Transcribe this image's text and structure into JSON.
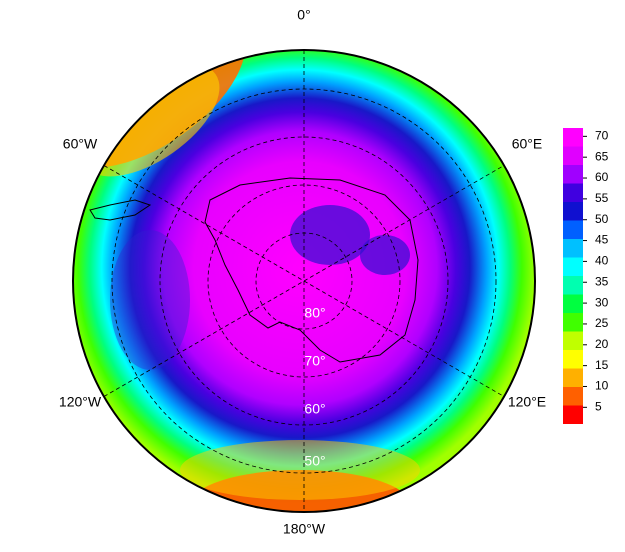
{
  "map": {
    "longitude_labels": [
      "0°",
      "60°E",
      "120°E",
      "180°W",
      "120°W",
      "60°W"
    ],
    "latitude_labels": [
      "80°",
      "70°",
      "60°",
      "50°"
    ]
  },
  "colorbar": {
    "lim": [
      1,
      72
    ],
    "ticks": [
      5,
      10,
      15,
      20,
      25,
      30,
      35,
      40,
      45,
      50,
      55,
      60,
      65,
      70
    ],
    "colors": [
      "#ff0000",
      "#ff6000",
      "#ffb000",
      "#ffff00",
      "#c0ff00",
      "#40ff00",
      "#00ff40",
      "#00ffb0",
      "#00ffff",
      "#00c0ff",
      "#0060ff",
      "#1010d0",
      "#4000e0",
      "#a000ff",
      "#e000ff",
      "#ff00ff"
    ]
  }
}
